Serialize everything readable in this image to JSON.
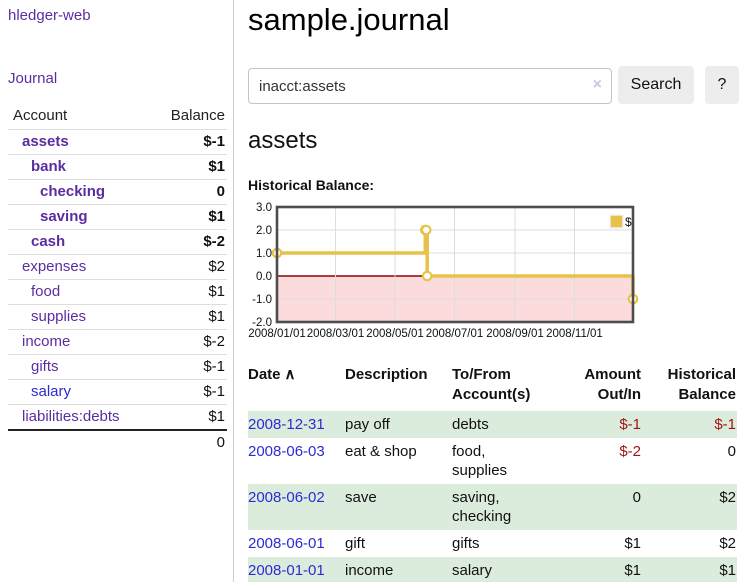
{
  "colors": {
    "link_purple": "#5b2da1",
    "link_blue": "#2b2bd4",
    "negative_strong": "#a01212",
    "negative_muted": "#c27f7f",
    "register_negative": "#9e1414",
    "row_shade_green": "#dcecdc",
    "chart_gold": "#e6c24a"
  },
  "icons": {
    "clear": "×",
    "sort_asc": "∧",
    "legend_swatch": "square"
  },
  "sidebar": {
    "brand": "hledger-web",
    "journal_link": "Journal",
    "accounts_table": {
      "headers": {
        "account": "Account",
        "balance": "Balance"
      },
      "rows": [
        {
          "name": "assets",
          "balance": "$-1",
          "level": 1,
          "bold": true,
          "name_style": "purple",
          "balance_style": "neg-strong"
        },
        {
          "name": "bank",
          "balance": "$1",
          "level": 2,
          "bold": true,
          "name_style": "purple",
          "balance_style": ""
        },
        {
          "name": "checking",
          "balance": "0",
          "level": 3,
          "bold": true,
          "name_style": "purple",
          "balance_style": ""
        },
        {
          "name": "saving",
          "balance": "$1",
          "level": 3,
          "bold": true,
          "name_style": "purple",
          "balance_style": ""
        },
        {
          "name": "cash",
          "balance": "$-2",
          "level": 2,
          "bold": true,
          "name_style": "purple",
          "balance_style": "neg-strong"
        },
        {
          "name": "expenses",
          "balance": "$2",
          "level": 1,
          "bold": false,
          "name_style": "purple",
          "balance_style": ""
        },
        {
          "name": "food",
          "balance": "$1",
          "level": 2,
          "bold": false,
          "name_style": "purple",
          "balance_style": ""
        },
        {
          "name": "supplies",
          "balance": "$1",
          "level": 2,
          "bold": false,
          "name_style": "purple",
          "balance_style": ""
        },
        {
          "name": "income",
          "balance": "$-2",
          "level": 1,
          "bold": false,
          "name_style": "purple",
          "balance_style": "neg-muted"
        },
        {
          "name": "gifts",
          "balance": "$-1",
          "level": 2,
          "bold": false,
          "name_style": "purple",
          "balance_style": "neg-muted"
        },
        {
          "name": "salary",
          "balance": "$-1",
          "level": 2,
          "bold": false,
          "name_style": "blue",
          "balance_style": "neg-muted"
        },
        {
          "name": "liabilities:debts",
          "balance": "$1",
          "level": 1,
          "bold": false,
          "name_style": "purple",
          "balance_style": ""
        }
      ],
      "total": "0"
    }
  },
  "main": {
    "title": "sample.journal",
    "search": {
      "value": "inacct:assets",
      "button": "Search",
      "help_button": "?"
    },
    "account_heading": "assets",
    "chart_label": "Historical Balance:",
    "register": {
      "columns": [
        {
          "label": "Date",
          "label2": "",
          "align": "left",
          "sorted": "asc"
        },
        {
          "label": "Description",
          "label2": "",
          "align": "left"
        },
        {
          "label": "To/From",
          "label2": "Account(s)",
          "align": "left"
        },
        {
          "label": "Amount",
          "label2": "Out/In",
          "align": "right"
        },
        {
          "label": "Historical",
          "label2": "Balance",
          "align": "right"
        }
      ],
      "rows": [
        {
          "date": "2008-12-31",
          "description": "pay off",
          "accounts": "debts",
          "amount": "$-1",
          "balance": "$-1",
          "shaded": true
        },
        {
          "date": "2008-06-03",
          "description": "eat & shop",
          "accounts": "food, supplies",
          "amount": "$-2",
          "balance": "0",
          "shaded": false
        },
        {
          "date": "2008-06-02",
          "description": "save",
          "accounts": "saving, checking",
          "amount": "0",
          "balance": "$2",
          "shaded": true
        },
        {
          "date": "2008-06-01",
          "description": "gift",
          "accounts": "gifts",
          "amount": "$1",
          "balance": "$2",
          "shaded": false
        },
        {
          "date": "2008-01-01",
          "description": "income",
          "accounts": "salary",
          "amount": "$1",
          "balance": "$1",
          "shaded": true
        }
      ]
    }
  },
  "chart_data": {
    "type": "line",
    "step": true,
    "title": "Historical Balance",
    "series": [
      {
        "name": "$",
        "color": "#e6c24a",
        "points": [
          {
            "date": "2008/01/01",
            "value": 1
          },
          {
            "date": "2008/06/01",
            "value": 2
          },
          {
            "date": "2008/06/02",
            "value": 2
          },
          {
            "date": "2008/06/03",
            "value": 0
          },
          {
            "date": "2008/12/31",
            "value": -1
          }
        ]
      }
    ],
    "x_ticks": [
      "2008/01/01",
      "2008/03/01",
      "2008/05/01",
      "2008/07/01",
      "2008/09/01",
      "2008/11/01"
    ],
    "y_ticks": [
      3.0,
      2.0,
      1.0,
      0.0,
      -1.0,
      -2.0
    ],
    "ylim": [
      -2,
      3
    ],
    "x_range_days": [
      0,
      365
    ],
    "grid": true,
    "legend_position": "top-right",
    "negative_region_color": "#fbdbdb",
    "zero_line_color": "#8f0000",
    "grid_color": "#dddddd",
    "border_color": "#4d4d4d"
  }
}
